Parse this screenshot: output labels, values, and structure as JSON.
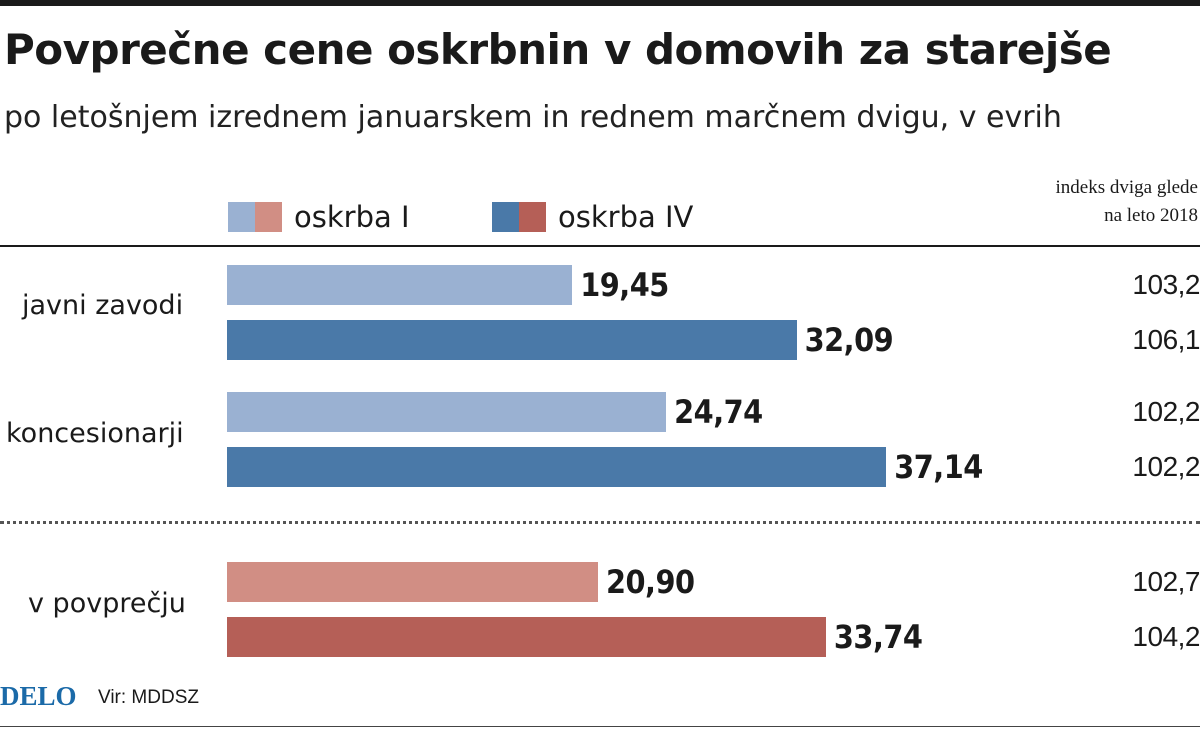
{
  "title": "Povprečne cene oskrbnin v domovih za starejše",
  "subtitle": "po letošnjem izrednem januarskem in rednem marčnem dvigu, v evrih",
  "legend": [
    {
      "label": "oskrba I",
      "colors": [
        "#9ab1d2",
        "#d18e84"
      ]
    },
    {
      "label": "oskrba IV",
      "colors": [
        "#4a79a8",
        "#b55f57"
      ]
    }
  ],
  "index_header": [
    "indeks dviga glede",
    "na leto 2018"
  ],
  "footer": {
    "logo": "DELO",
    "source": "Vir: MDDSZ"
  },
  "chart_data": {
    "type": "bar",
    "orientation": "horizontal",
    "title": "Povprečne cene oskrbnin v domovih za starejše",
    "subtitle": "po letošnjem izrednem januarskem in rednem marčnem dvigu, v evrih",
    "xlim": [
      0,
      42.5
    ],
    "categories": [
      "javni zavodi",
      "koncesionarji",
      "v povprečju"
    ],
    "series": [
      {
        "name": "oskrba I",
        "values": [
          19.45,
          24.74,
          20.9
        ],
        "labels": [
          "19,45",
          "24,74",
          "20,90"
        ],
        "index": [
          "103,2",
          "102,2",
          "102,7"
        ],
        "colors": [
          "#9ab1d2",
          "#9ab1d2",
          "#d18e84"
        ]
      },
      {
        "name": "oskrba IV",
        "values": [
          32.09,
          37.14,
          33.74
        ],
        "labels": [
          "32,09",
          "37,14",
          "33,74"
        ],
        "index": [
          "106,1",
          "102,2",
          "104,2"
        ],
        "colors": [
          "#4a79a8",
          "#4a79a8",
          "#b55f57"
        ]
      }
    ]
  }
}
